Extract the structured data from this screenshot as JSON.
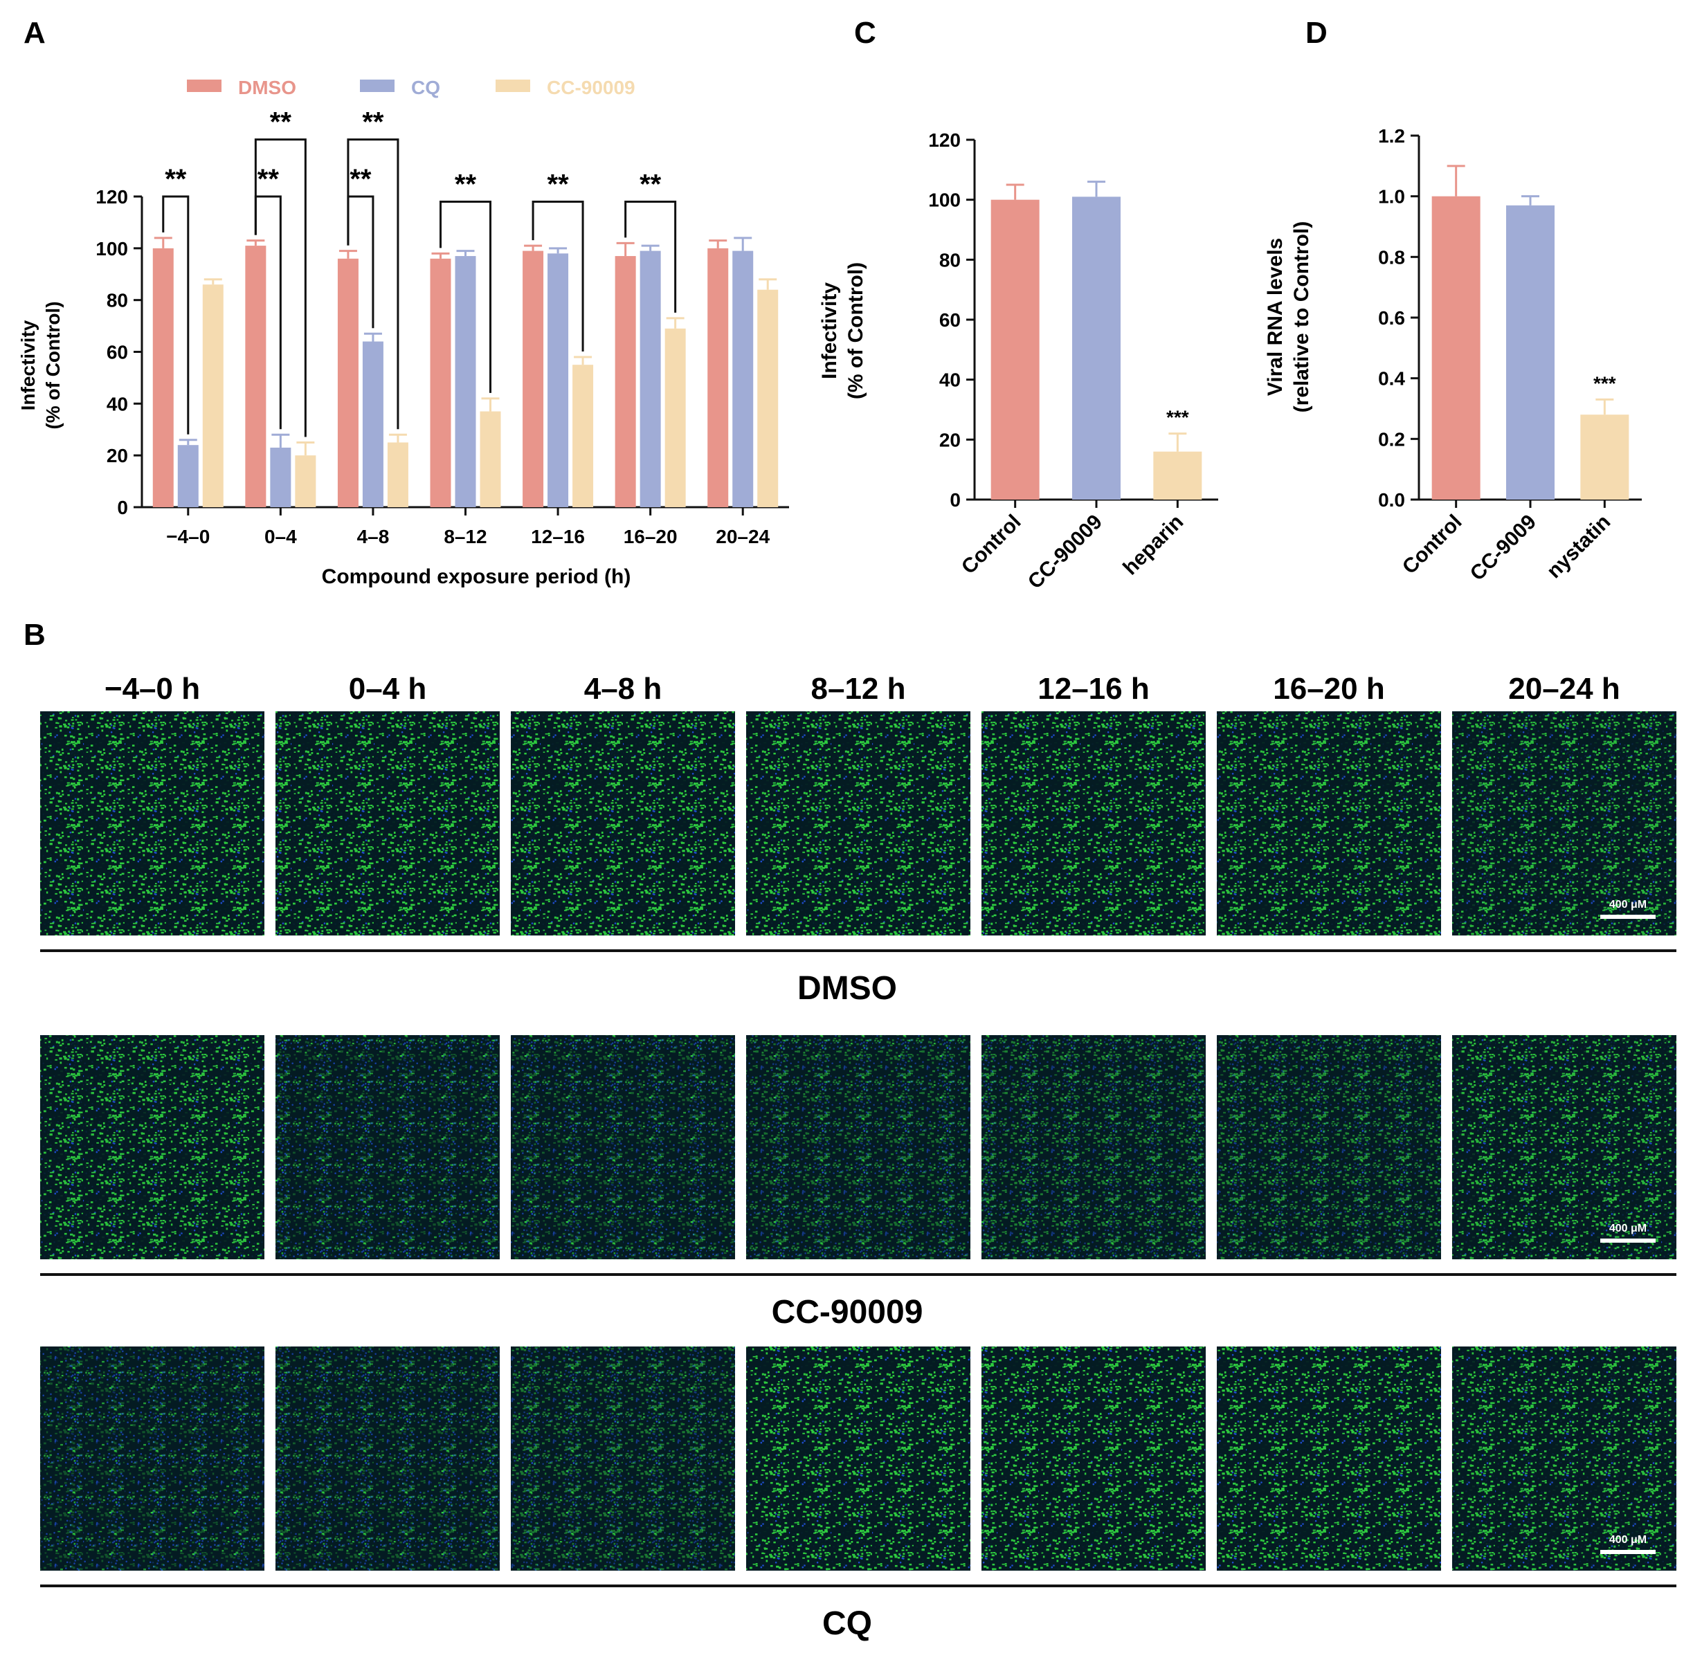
{
  "colors": {
    "dmso": "#e8958b",
    "cq": "#a0acd6",
    "cc90009": "#f5dbb0",
    "axis": "#111111",
    "micro_bg": "#041b22",
    "micro_green": "#2fd33f",
    "micro_blue": "#1f4fd6"
  },
  "panel_labels": {
    "a": "A",
    "b": "B",
    "c": "C",
    "d": "D"
  },
  "chart_data": [
    {
      "id": "A",
      "type": "bar",
      "xlabel": "Compound exposure period (h)",
      "ylabel_lines": [
        "Infectivity",
        "(% of Control)"
      ],
      "ylim": [
        0,
        120
      ],
      "yticks": [
        0,
        20,
        40,
        60,
        80,
        100,
        120
      ],
      "categories": [
        "−4–0",
        "0–4",
        "4–8",
        "8–12",
        "12–16",
        "16–20",
        "20–24"
      ],
      "legend": {
        "placement": "top"
      },
      "series": [
        {
          "name": "DMSO",
          "color_key": "dmso",
          "values": [
            100,
            101,
            96,
            96,
            99,
            97,
            100
          ],
          "errors": [
            4,
            2,
            3,
            2,
            2,
            5,
            3
          ]
        },
        {
          "name": "CQ",
          "color_key": "cq",
          "values": [
            24,
            23,
            64,
            97,
            98,
            99,
            99
          ],
          "errors": [
            2,
            5,
            3,
            2,
            2,
            2,
            5
          ]
        },
        {
          "name": "CC-90009",
          "color_key": "cc90009",
          "values": [
            86,
            20,
            25,
            37,
            55,
            69,
            84
          ],
          "errors": [
            2,
            5,
            3,
            5,
            3,
            4,
            4
          ]
        }
      ],
      "significance": [
        {
          "group": 0,
          "from": 0,
          "to": 1,
          "label": "**",
          "level": 120
        },
        {
          "group": 1,
          "from": 0,
          "to": 1,
          "label": "**",
          "level": 120
        },
        {
          "group": 1,
          "from": 0,
          "to": 2,
          "label": "**",
          "level": 142
        },
        {
          "group": 2,
          "from": 0,
          "to": 1,
          "label": "**",
          "level": 120
        },
        {
          "group": 2,
          "from": 0,
          "to": 2,
          "label": "**",
          "level": 142
        },
        {
          "group": 3,
          "from": 0,
          "to": 2,
          "label": "**",
          "level": 118
        },
        {
          "group": 4,
          "from": 0,
          "to": 2,
          "label": "**",
          "level": 118
        },
        {
          "group": 5,
          "from": 0,
          "to": 2,
          "label": "**",
          "level": 118
        }
      ]
    },
    {
      "id": "C",
      "type": "bar",
      "xlabel": "",
      "ylabel_lines": [
        "Infectivity",
        "(% of Control)"
      ],
      "ylim": [
        0,
        120
      ],
      "yticks": [
        0,
        20,
        40,
        60,
        80,
        100,
        120
      ],
      "categories": [
        "Control",
        "CC-90009",
        "heparin"
      ],
      "values": [
        100,
        101,
        16
      ],
      "errors": [
        5,
        5,
        6
      ],
      "color_keys": [
        "dmso",
        "cq",
        "cc90009"
      ],
      "annotations": [
        {
          "index": 2,
          "text": "***"
        }
      ]
    },
    {
      "id": "D",
      "type": "bar",
      "xlabel": "",
      "ylabel_lines": [
        "Viral RNA levels",
        "(relative to Control)"
      ],
      "ylim": [
        0,
        1.2
      ],
      "yticks": [
        0.0,
        0.2,
        0.4,
        0.6,
        0.8,
        1.0,
        1.2
      ],
      "ytick_labels": [
        "0.0",
        "0.2",
        "0.4",
        "0.6",
        "0.8",
        "1.0",
        "1.2"
      ],
      "categories": [
        "Control",
        "CC-9009",
        "nystatin"
      ],
      "values": [
        1.0,
        0.97,
        0.28
      ],
      "errors": [
        0.1,
        0.03,
        0.05
      ],
      "color_keys": [
        "dmso",
        "cq",
        "cc90009"
      ],
      "annotations": [
        {
          "index": 2,
          "text": "***"
        }
      ]
    }
  ],
  "micrographs": {
    "time_labels": [
      "−4–0 h",
      "0–4 h",
      "4–8 h",
      "8–12 h",
      "12–16 h",
      "16–20 h",
      "20–24 h"
    ],
    "scale_bar_label": "400 μM",
    "rows": [
      {
        "name": "DMSO",
        "intensity": [
          0.95,
          0.95,
          0.95,
          0.95,
          0.95,
          0.92,
          0.85
        ]
      },
      {
        "name": "CC-90009",
        "intensity": [
          0.9,
          0.3,
          0.35,
          0.45,
          0.55,
          0.6,
          0.85
        ]
      },
      {
        "name": "CQ",
        "intensity": [
          0.3,
          0.35,
          0.5,
          0.95,
          0.95,
          0.95,
          0.9
        ]
      }
    ]
  }
}
